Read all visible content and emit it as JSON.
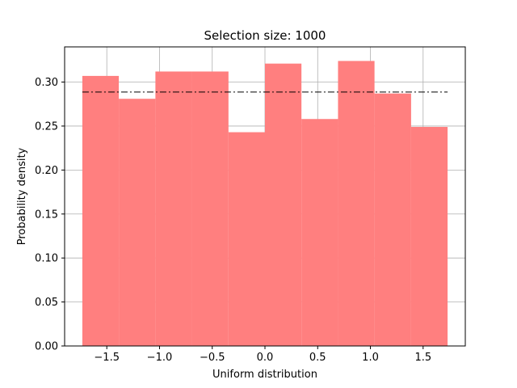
{
  "chart_data": {
    "type": "bar",
    "title": "Selection size: 1000",
    "xlabel": "Uniform distribution",
    "ylabel": "Probability density",
    "xlim": [
      -1.9,
      1.9
    ],
    "ylim": [
      0.0,
      0.34
    ],
    "grid": true,
    "colors": {
      "bars": "#ff7f7f",
      "reference": "#000000",
      "grid": "#b0b0b0"
    },
    "x_ticks": [
      -1.5,
      -1.0,
      -0.5,
      0.0,
      0.5,
      1.0,
      1.5
    ],
    "x_tick_labels": [
      "−1.5",
      "−1.0",
      "−0.5",
      "0.0",
      "0.5",
      "1.0",
      "1.5"
    ],
    "y_ticks": [
      0.0,
      0.05,
      0.1,
      0.15,
      0.2,
      0.25,
      0.3
    ],
    "y_tick_labels": [
      "0.00",
      "0.05",
      "0.10",
      "0.15",
      "0.20",
      "0.25",
      "0.30"
    ],
    "bins": [
      {
        "x0": -1.732,
        "x1": -1.386,
        "value": 0.307
      },
      {
        "x0": -1.386,
        "x1": -1.039,
        "value": 0.281
      },
      {
        "x0": -1.039,
        "x1": -0.693,
        "value": 0.312
      },
      {
        "x0": -0.693,
        "x1": -0.346,
        "value": 0.312
      },
      {
        "x0": -0.346,
        "x1": 0.0,
        "value": 0.243
      },
      {
        "x0": 0.0,
        "x1": 0.346,
        "value": 0.321
      },
      {
        "x0": 0.346,
        "x1": 0.693,
        "value": 0.258
      },
      {
        "x0": 0.693,
        "x1": 1.039,
        "value": 0.324
      },
      {
        "x0": 1.039,
        "x1": 1.386,
        "value": 0.287
      },
      {
        "x0": 1.386,
        "x1": 1.732,
        "value": 0.249
      }
    ],
    "reference_line": {
      "x0": -1.732,
      "x1": 1.732,
      "y": 0.2887,
      "style": "dash-dot"
    }
  }
}
